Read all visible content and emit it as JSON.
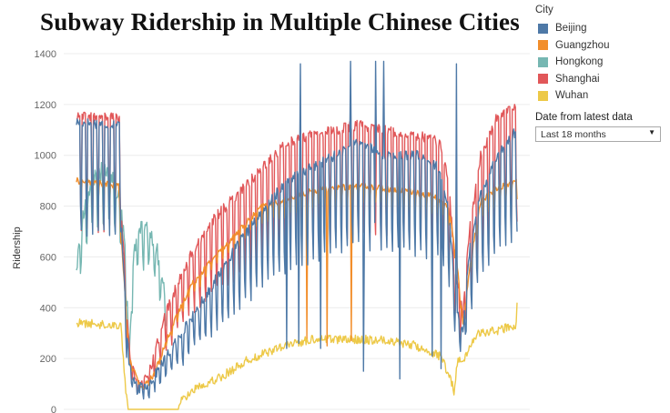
{
  "chart_data": {
    "type": "line",
    "title": "Subway Ridership in Multiple Chinese Cities",
    "ylabel": "Ridership",
    "xlabel": "",
    "ylim": [
      0,
      1400
    ],
    "yticks": [
      0,
      200,
      400,
      600,
      800,
      1000,
      1200,
      1400
    ],
    "grid": true,
    "legend_title": "City",
    "legend_position": "right",
    "x_unit": "days",
    "x_range": [
      0,
      545
    ],
    "series": [
      {
        "name": "Beijing",
        "color": "#4e79a7",
        "mode": "weekly",
        "anchors": [
          [
            0,
            1130
          ],
          [
            55,
            1120
          ],
          [
            56,
            700
          ],
          [
            65,
            180
          ],
          [
            75,
            80
          ],
          [
            90,
            100
          ],
          [
            110,
            200
          ],
          [
            140,
            350
          ],
          [
            170,
            500
          ],
          [
            200,
            650
          ],
          [
            230,
            780
          ],
          [
            260,
            900
          ],
          [
            290,
            950
          ],
          [
            320,
            1000
          ],
          [
            350,
            1050
          ],
          [
            380,
            1000
          ],
          [
            420,
            1000
          ],
          [
            450,
            950
          ],
          [
            460,
            800
          ],
          [
            470,
            400
          ],
          [
            478,
            300
          ],
          [
            485,
            600
          ],
          [
            500,
            850
          ],
          [
            520,
            1000
          ],
          [
            545,
            1100
          ]
        ],
        "spikes": [
          [
            277,
            1360
          ],
          [
            339,
            1370
          ],
          [
            370,
            1370
          ],
          [
            380,
            1370
          ],
          [
            470,
            1360
          ]
        ],
        "dips": [
          [
            260,
            240
          ],
          [
            275,
            260
          ],
          [
            302,
            240
          ],
          [
            355,
            150
          ],
          [
            400,
            120
          ],
          [
            440,
            210
          ],
          [
            451,
            160
          ]
        ]
      },
      {
        "name": "Guangzhou",
        "color": "#f28e2b",
        "mode": "smooth",
        "anchors": [
          [
            0,
            900
          ],
          [
            52,
            880
          ],
          [
            56,
            660
          ],
          [
            65,
            200
          ],
          [
            80,
            80
          ],
          [
            95,
            130
          ],
          [
            115,
            300
          ],
          [
            140,
            480
          ],
          [
            170,
            600
          ],
          [
            200,
            700
          ],
          [
            230,
            800
          ],
          [
            260,
            820
          ],
          [
            290,
            860
          ],
          [
            320,
            870
          ],
          [
            350,
            880
          ],
          [
            380,
            870
          ],
          [
            410,
            860
          ],
          [
            440,
            840
          ],
          [
            460,
            800
          ],
          [
            470,
            600
          ],
          [
            478,
            330
          ],
          [
            486,
            550
          ],
          [
            500,
            820
          ],
          [
            520,
            870
          ],
          [
            545,
            900
          ]
        ],
        "spikes": [],
        "dips": [
          [
            285,
            280
          ],
          [
            310,
            250
          ],
          [
            340,
            270
          ]
        ]
      },
      {
        "name": "Hongkong",
        "color": "#76b7b2",
        "mode": "weekly_short",
        "anchors": [
          [
            0,
            560
          ],
          [
            10,
            800
          ],
          [
            20,
            900
          ],
          [
            35,
            950
          ],
          [
            45,
            900
          ],
          [
            55,
            800
          ],
          [
            62,
            550
          ],
          [
            65,
            180
          ],
          [
            68,
            470
          ],
          [
            72,
            650
          ],
          [
            80,
            720
          ],
          [
            90,
            700
          ],
          [
            100,
            620
          ],
          [
            110,
            430
          ]
        ],
        "spikes": [],
        "dips": []
      },
      {
        "name": "Shanghai",
        "color": "#e15759",
        "mode": "weekly",
        "anchors": [
          [
            0,
            1150
          ],
          [
            55,
            1150
          ],
          [
            56,
            750
          ],
          [
            66,
            200
          ],
          [
            78,
            85
          ],
          [
            92,
            160
          ],
          [
            110,
            380
          ],
          [
            140,
            600
          ],
          [
            170,
            750
          ],
          [
            200,
            850
          ],
          [
            230,
            950
          ],
          [
            260,
            1050
          ],
          [
            290,
            1080
          ],
          [
            320,
            1100
          ],
          [
            350,
            1120
          ],
          [
            380,
            1100
          ],
          [
            420,
            1080
          ],
          [
            450,
            1050
          ],
          [
            460,
            900
          ],
          [
            470,
            500
          ],
          [
            478,
            380
          ],
          [
            486,
            700
          ],
          [
            500,
            1000
          ],
          [
            520,
            1150
          ],
          [
            545,
            1200
          ]
        ],
        "spikes": [],
        "dips": []
      },
      {
        "name": "Wuhan",
        "color": "#edc948",
        "mode": "noisy",
        "anchors": [
          [
            0,
            340
          ],
          [
            55,
            330
          ],
          [
            58,
            200
          ],
          [
            62,
            40
          ],
          [
            64,
            0
          ],
          [
            125,
            0
          ],
          [
            128,
            30
          ],
          [
            150,
            90
          ],
          [
            180,
            130
          ],
          [
            210,
            190
          ],
          [
            240,
            230
          ],
          [
            270,
            260
          ],
          [
            300,
            280
          ],
          [
            330,
            275
          ],
          [
            360,
            275
          ],
          [
            390,
            270
          ],
          [
            420,
            250
          ],
          [
            450,
            210
          ],
          [
            462,
            130
          ],
          [
            467,
            70
          ],
          [
            472,
            200
          ],
          [
            478,
            180
          ],
          [
            495,
            300
          ],
          [
            520,
            310
          ],
          [
            545,
            330
          ]
        ],
        "spikes": [
          [
            545,
            420
          ]
        ],
        "dips": []
      }
    ]
  },
  "filter": {
    "title": "Date from latest data",
    "value": "Last 18 months"
  }
}
